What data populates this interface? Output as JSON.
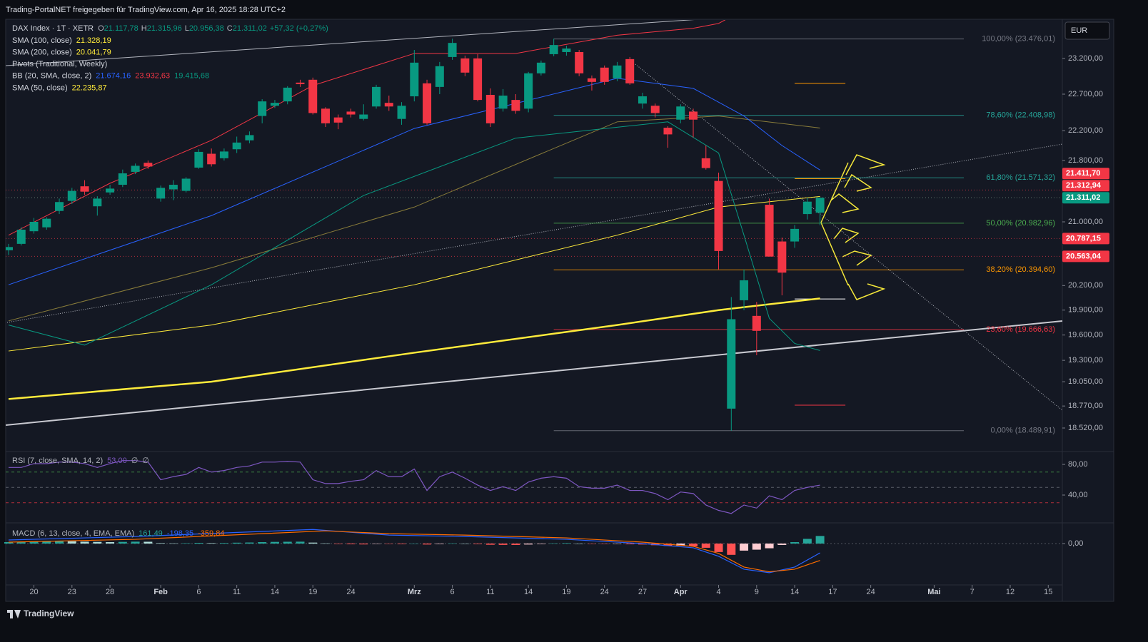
{
  "header": {
    "title": "Trading-PortalNET freigegeben für TradingView.com, Apr 16, 2025 18:28 UTC+2",
    "currency": "EUR",
    "brand": "TradingView"
  },
  "chart_data": [
    {
      "type": "candlestick",
      "legend": {
        "symbol": "DAX Index · 1T · XETR",
        "ohlc": [
          {
            "key": "O",
            "value": "21.117,78"
          },
          {
            "key": "H",
            "value": "21.315,96"
          },
          {
            "key": "L",
            "value": "20.956,38"
          },
          {
            "key": "C",
            "value": "21.311,02"
          }
        ],
        "change": "+57,32 (+0,27%)",
        "indicators": [
          {
            "name": "SMA (100, close)",
            "values": [
              "21.328,19"
            ],
            "colors": [
              "#ffeb3b"
            ]
          },
          {
            "name": "SMA (200, close)",
            "values": [
              "20.041,79"
            ],
            "colors": [
              "#ffeb3b"
            ]
          },
          {
            "name": "Pivots (Traditional, Weekly)",
            "values": [],
            "colors": []
          },
          {
            "name": "BB (20, SMA, close, 2)",
            "values": [
              "21.674,16",
              "23.932,63",
              "19.415,68"
            ],
            "colors": [
              "#2962ff",
              "#f23645",
              "#089981"
            ]
          },
          {
            "name": "SMA (50, close)",
            "values": [
              "22.235,87"
            ],
            "colors": [
              "#ffeb3b"
            ]
          }
        ]
      },
      "up_color": "#089981",
      "down_color": "#f23645",
      "log_scale": true,
      "grid": false,
      "open": [
        20640,
        20720,
        20880,
        20930,
        21140,
        21270,
        21460,
        21200,
        21380,
        21480,
        21650,
        21770,
        21300,
        21420,
        21400,
        21706,
        21890,
        21830,
        21950,
        22070,
        22400,
        22540,
        22600,
        22860,
        22900,
        22500,
        22380,
        22460,
        22360,
        22530,
        22580,
        22360,
        22670,
        22850,
        22800,
        23220,
        23200,
        23200,
        22690,
        22500,
        22620,
        22500,
        22990,
        23260,
        23290,
        23290,
        22920,
        23070,
        22920,
        23190,
        22570,
        22540,
        22240,
        22350,
        22460,
        21830,
        21530,
        18740,
        20020,
        19830,
        21220,
        20750,
        20750,
        21100,
        21117.78
      ],
      "high": [
        20720,
        20930,
        21050,
        21060,
        21300,
        21440,
        21540,
        21330,
        21480,
        21680,
        21760,
        21800,
        21470,
        21540,
        21580,
        21950,
        21960,
        21960,
        22120,
        22190,
        22630,
        22620,
        22810,
        22900,
        22930,
        22520,
        22420,
        22500,
        22560,
        22830,
        22680,
        22590,
        23320,
        22900,
        23150,
        23480,
        23240,
        23260,
        22780,
        22770,
        22700,
        23010,
        23170,
        23480,
        23380,
        23320,
        22960,
        23100,
        23150,
        23220,
        22720,
        22570,
        22260,
        22560,
        22500,
        22000,
        21640,
        20060,
        20400,
        20000,
        21300,
        20800,
        20960,
        21310,
        21315.96
      ],
      "low": [
        20580,
        20700,
        20850,
        20900,
        21100,
        21230,
        21350,
        21080,
        21350,
        21450,
        21620,
        21690,
        21260,
        21280,
        21380,
        21690,
        21720,
        21800,
        21900,
        22030,
        22300,
        22510,
        22560,
        22800,
        22420,
        22250,
        22220,
        22380,
        22340,
        22500,
        22470,
        22280,
        22600,
        22280,
        22700,
        23180,
        22950,
        22600,
        22250,
        22460,
        22430,
        22450,
        22960,
        23230,
        23240,
        22950,
        22750,
        22830,
        22880,
        22830,
        22500,
        22380,
        21970,
        22300,
        22110,
        21680,
        20400,
        18490,
        19900,
        19360,
        20560,
        20080,
        20670,
        21030,
        20956.38
      ],
      "close": [
        20680,
        20900,
        21000,
        21040,
        21255,
        21400,
        21390,
        21300,
        21430,
        21630,
        21730,
        21720,
        21440,
        21480,
        21560,
        21915,
        21750,
        21920,
        22040,
        22140,
        22600,
        22580,
        22790,
        22840,
        22440,
        22300,
        22310,
        22420,
        22420,
        22800,
        22530,
        22540,
        23140,
        22300,
        23090,
        23420,
        23000,
        22620,
        22300,
        22680,
        22470,
        22990,
        23140,
        23390,
        23340,
        22990,
        22870,
        22870,
        23100,
        22850,
        22670,
        22440,
        22150,
        22530,
        22350,
        21700,
        20630,
        19790,
        20265,
        19650,
        20560,
        20360,
        20910,
        21260,
        21311.02
      ],
      "lines": [
        {
          "color": "#ffeb3b",
          "width": 1,
          "x": [
            0,
            16,
            32,
            48,
            56,
            64
          ],
          "values": [
            19410,
            19720,
            20210,
            20830,
            21190,
            21328
          ]
        },
        {
          "color": "#ffeb3b",
          "width": 2.5,
          "x": [
            0,
            16,
            32,
            48,
            56,
            64
          ],
          "values": [
            18850,
            19050,
            19390,
            19720,
            19900,
            20042
          ]
        },
        {
          "color": "#8a7d3a",
          "width": 1,
          "x": [
            0,
            16,
            32,
            48,
            56,
            64
          ],
          "values": [
            19770,
            20420,
            21190,
            22320,
            22400,
            22236
          ]
        },
        {
          "color": "#2962ff",
          "width": 1,
          "x": [
            0,
            16,
            32,
            48,
            54,
            58,
            61,
            64
          ],
          "values": [
            20210,
            21080,
            22230,
            22920,
            22780,
            22400,
            22000,
            21674.16
          ]
        },
        {
          "color": "#f23645",
          "width": 1,
          "x": [
            0,
            8,
            16,
            24,
            32,
            40,
            48,
            54,
            56,
            58,
            64
          ],
          "values": [
            20830,
            21500,
            22070,
            22820,
            23270,
            23270,
            23530,
            23630,
            23700,
            23900,
            23932.63
          ]
        },
        {
          "color": "#089981",
          "width": 1,
          "x": [
            0,
            6,
            16,
            28,
            40,
            52,
            56,
            58,
            60,
            62,
            64
          ],
          "values": [
            19720,
            19480,
            20210,
            21340,
            22100,
            22320,
            21900,
            20830,
            19800,
            19500,
            19415.68
          ]
        }
      ],
      "fib_start": 43,
      "fib_levels": [
        {
          "value": 23476.01,
          "label": "100,00% (23.476,01)",
          "color": "#787b86"
        },
        {
          "value": 22408.98,
          "label": "78,60% (22.408,98)",
          "color": "#26a69a"
        },
        {
          "value": 21571.32,
          "label": "61,80% (21.571,32)",
          "color": "#26a69a"
        },
        {
          "value": 20982.96,
          "label": "50,00% (20.982,96)",
          "color": "#4caf50"
        },
        {
          "value": 20394.6,
          "label": "38,20% (20.394,60)",
          "color": "#ff9800"
        },
        {
          "value": 19666.63,
          "label": "23,60% (19.666,63)",
          "color": "#f23645"
        },
        {
          "value": 18489.91,
          "label": "0,00% (18.489,91)",
          "color": "#787b86"
        }
      ],
      "pivots": {
        "x": [
          62,
          66
        ],
        "levels": [
          {
            "value": 22850,
            "color": "#ff9800"
          },
          {
            "value": 21560,
            "color": "#ff9800"
          },
          {
            "value": 20035,
            "color": "#ffffff"
          },
          {
            "value": 18780,
            "color": "#f23645"
          }
        ]
      },
      "price_tags": [
        {
          "value": 21411.7,
          "label": "21.411,70",
          "color": "#f23645"
        },
        {
          "value": 21312.94,
          "label": "21.312,94",
          "color": "#f23645"
        },
        {
          "value": 21311.02,
          "label": "21.311,02",
          "color": "#089981"
        },
        {
          "value": 20787.15,
          "label": "20.787,15",
          "color": "#f23645"
        },
        {
          "value": 20563.04,
          "label": "20.563,04",
          "color": "#f23645"
        }
      ],
      "xlim": [
        -0.225,
        83.11
      ],
      "xticks": [
        {
          "value": 2,
          "label": "20"
        },
        {
          "value": 5,
          "label": "23"
        },
        {
          "value": 8,
          "label": "28"
        },
        {
          "value": 12,
          "label": "Feb"
        },
        {
          "value": 15,
          "label": "6"
        },
        {
          "value": 18,
          "label": "11"
        },
        {
          "value": 21,
          "label": "14"
        },
        {
          "value": 24,
          "label": "19"
        },
        {
          "value": 27,
          "label": "24"
        },
        {
          "value": 32,
          "label": "Mrz"
        },
        {
          "value": 35,
          "label": "6"
        },
        {
          "value": 38,
          "label": "11"
        },
        {
          "value": 41,
          "label": "14"
        },
        {
          "value": 44,
          "label": "19"
        },
        {
          "value": 47,
          "label": "24"
        },
        {
          "value": 50,
          "label": "27"
        },
        {
          "value": 53,
          "label": "Apr"
        },
        {
          "value": 56,
          "label": "4"
        },
        {
          "value": 59,
          "label": "9"
        },
        {
          "value": 62,
          "label": "14"
        },
        {
          "value": 65,
          "label": "17"
        },
        {
          "value": 68,
          "label": "24"
        },
        {
          "value": 73,
          "label": "Mai"
        },
        {
          "value": 76,
          "label": "7"
        },
        {
          "value": 79,
          "label": "12"
        },
        {
          "value": 82,
          "label": "15"
        }
      ],
      "ylim": [
        18280,
        23750
      ],
      "yticks": [
        {
          "value": 23200,
          "label": "23.200,00"
        },
        {
          "value": 22700,
          "label": "22.700,00"
        },
        {
          "value": 22200,
          "label": "22.200,00"
        },
        {
          "value": 21800,
          "label": "21.800,00"
        },
        {
          "value": 21000,
          "label": "21.000,00"
        },
        {
          "value": 20200,
          "label": "20.200,00"
        },
        {
          "value": 19900,
          "label": "19.900,00"
        },
        {
          "value": 19600,
          "label": "19.600,00"
        },
        {
          "value": 19300,
          "label": "19.300,00"
        },
        {
          "value": 19050,
          "label": "19.050,00"
        },
        {
          "value": 18770,
          "label": "18.770,00"
        },
        {
          "value": 18520,
          "label": "18.520,00"
        }
      ]
    },
    {
      "type": "line",
      "legend": [
        "RSI (7, close, SMA, 14, 2)",
        "53,00",
        "∅",
        "∅"
      ],
      "color": "#7e57c2",
      "values": [
        76,
        76,
        81,
        81,
        83,
        83,
        81,
        76,
        81,
        85,
        85,
        83,
        60,
        64,
        67,
        76,
        70,
        72,
        76,
        78,
        83,
        83,
        84,
        83,
        60,
        55,
        55,
        58,
        60,
        72,
        64,
        64,
        74,
        46,
        64,
        70,
        62,
        53,
        46,
        51,
        46,
        57,
        62,
        64,
        62,
        51,
        49,
        49,
        53,
        46,
        46,
        42,
        34,
        44,
        42,
        27,
        20,
        16,
        27,
        23,
        39,
        34,
        46,
        50,
        53
      ],
      "levels": [
        {
          "value": 70,
          "color": "#4caf50"
        },
        {
          "value": 50,
          "color": "#787b86"
        },
        {
          "value": 30,
          "color": "#f23645"
        }
      ],
      "ylim": [
        6.5,
        94
      ],
      "yticks": [
        {
          "value": 80,
          "label": "80,00"
        },
        {
          "value": 40,
          "label": "40,00"
        }
      ]
    },
    {
      "type": "macd",
      "legend": [
        "MACD (6, 13, close, 4, EMA, EMA)",
        "161,49",
        "-198,35",
        "-359,84"
      ],
      "histogram": [
        30,
        35,
        40,
        45,
        50,
        48,
        40,
        35,
        30,
        35,
        40,
        38,
        10,
        5,
        8,
        15,
        10,
        12,
        18,
        22,
        30,
        35,
        38,
        40,
        20,
        5,
        -10,
        -15,
        -18,
        -5,
        -8,
        -12,
        0,
        -20,
        -10,
        5,
        0,
        -12,
        -25,
        -28,
        -30,
        -20,
        -10,
        5,
        10,
        0,
        -5,
        -8,
        -5,
        -15,
        -20,
        -35,
        -50,
        -45,
        -60,
        -90,
        -180,
        -240,
        -150,
        -130,
        -100,
        -30,
        30,
        100,
        161.49
      ],
      "series": [
        {
          "color": "#2962ff",
          "x": [
            0,
            10,
            20,
            24,
            30,
            36,
            44,
            50,
            54,
            56,
            58,
            60,
            62,
            64
          ],
          "values": [
            76,
            150,
            258,
            300,
            180,
            150,
            90,
            0,
            -90,
            -270,
            -545,
            -620,
            -500,
            -198.35
          ]
        },
        {
          "color": "#ff6d00",
          "x": [
            0,
            10,
            20,
            25,
            30,
            36,
            44,
            50,
            54,
            56,
            58,
            60,
            62,
            64
          ],
          "values": [
            30,
            90,
            210,
            270,
            210,
            180,
            120,
            30,
            -60,
            -210,
            -500,
            -600,
            -545,
            -359.84
          ]
        }
      ],
      "ylim": [
        -880,
        364
      ],
      "yticks": [
        {
          "value": 0,
          "label": "0,00"
        }
      ]
    }
  ]
}
